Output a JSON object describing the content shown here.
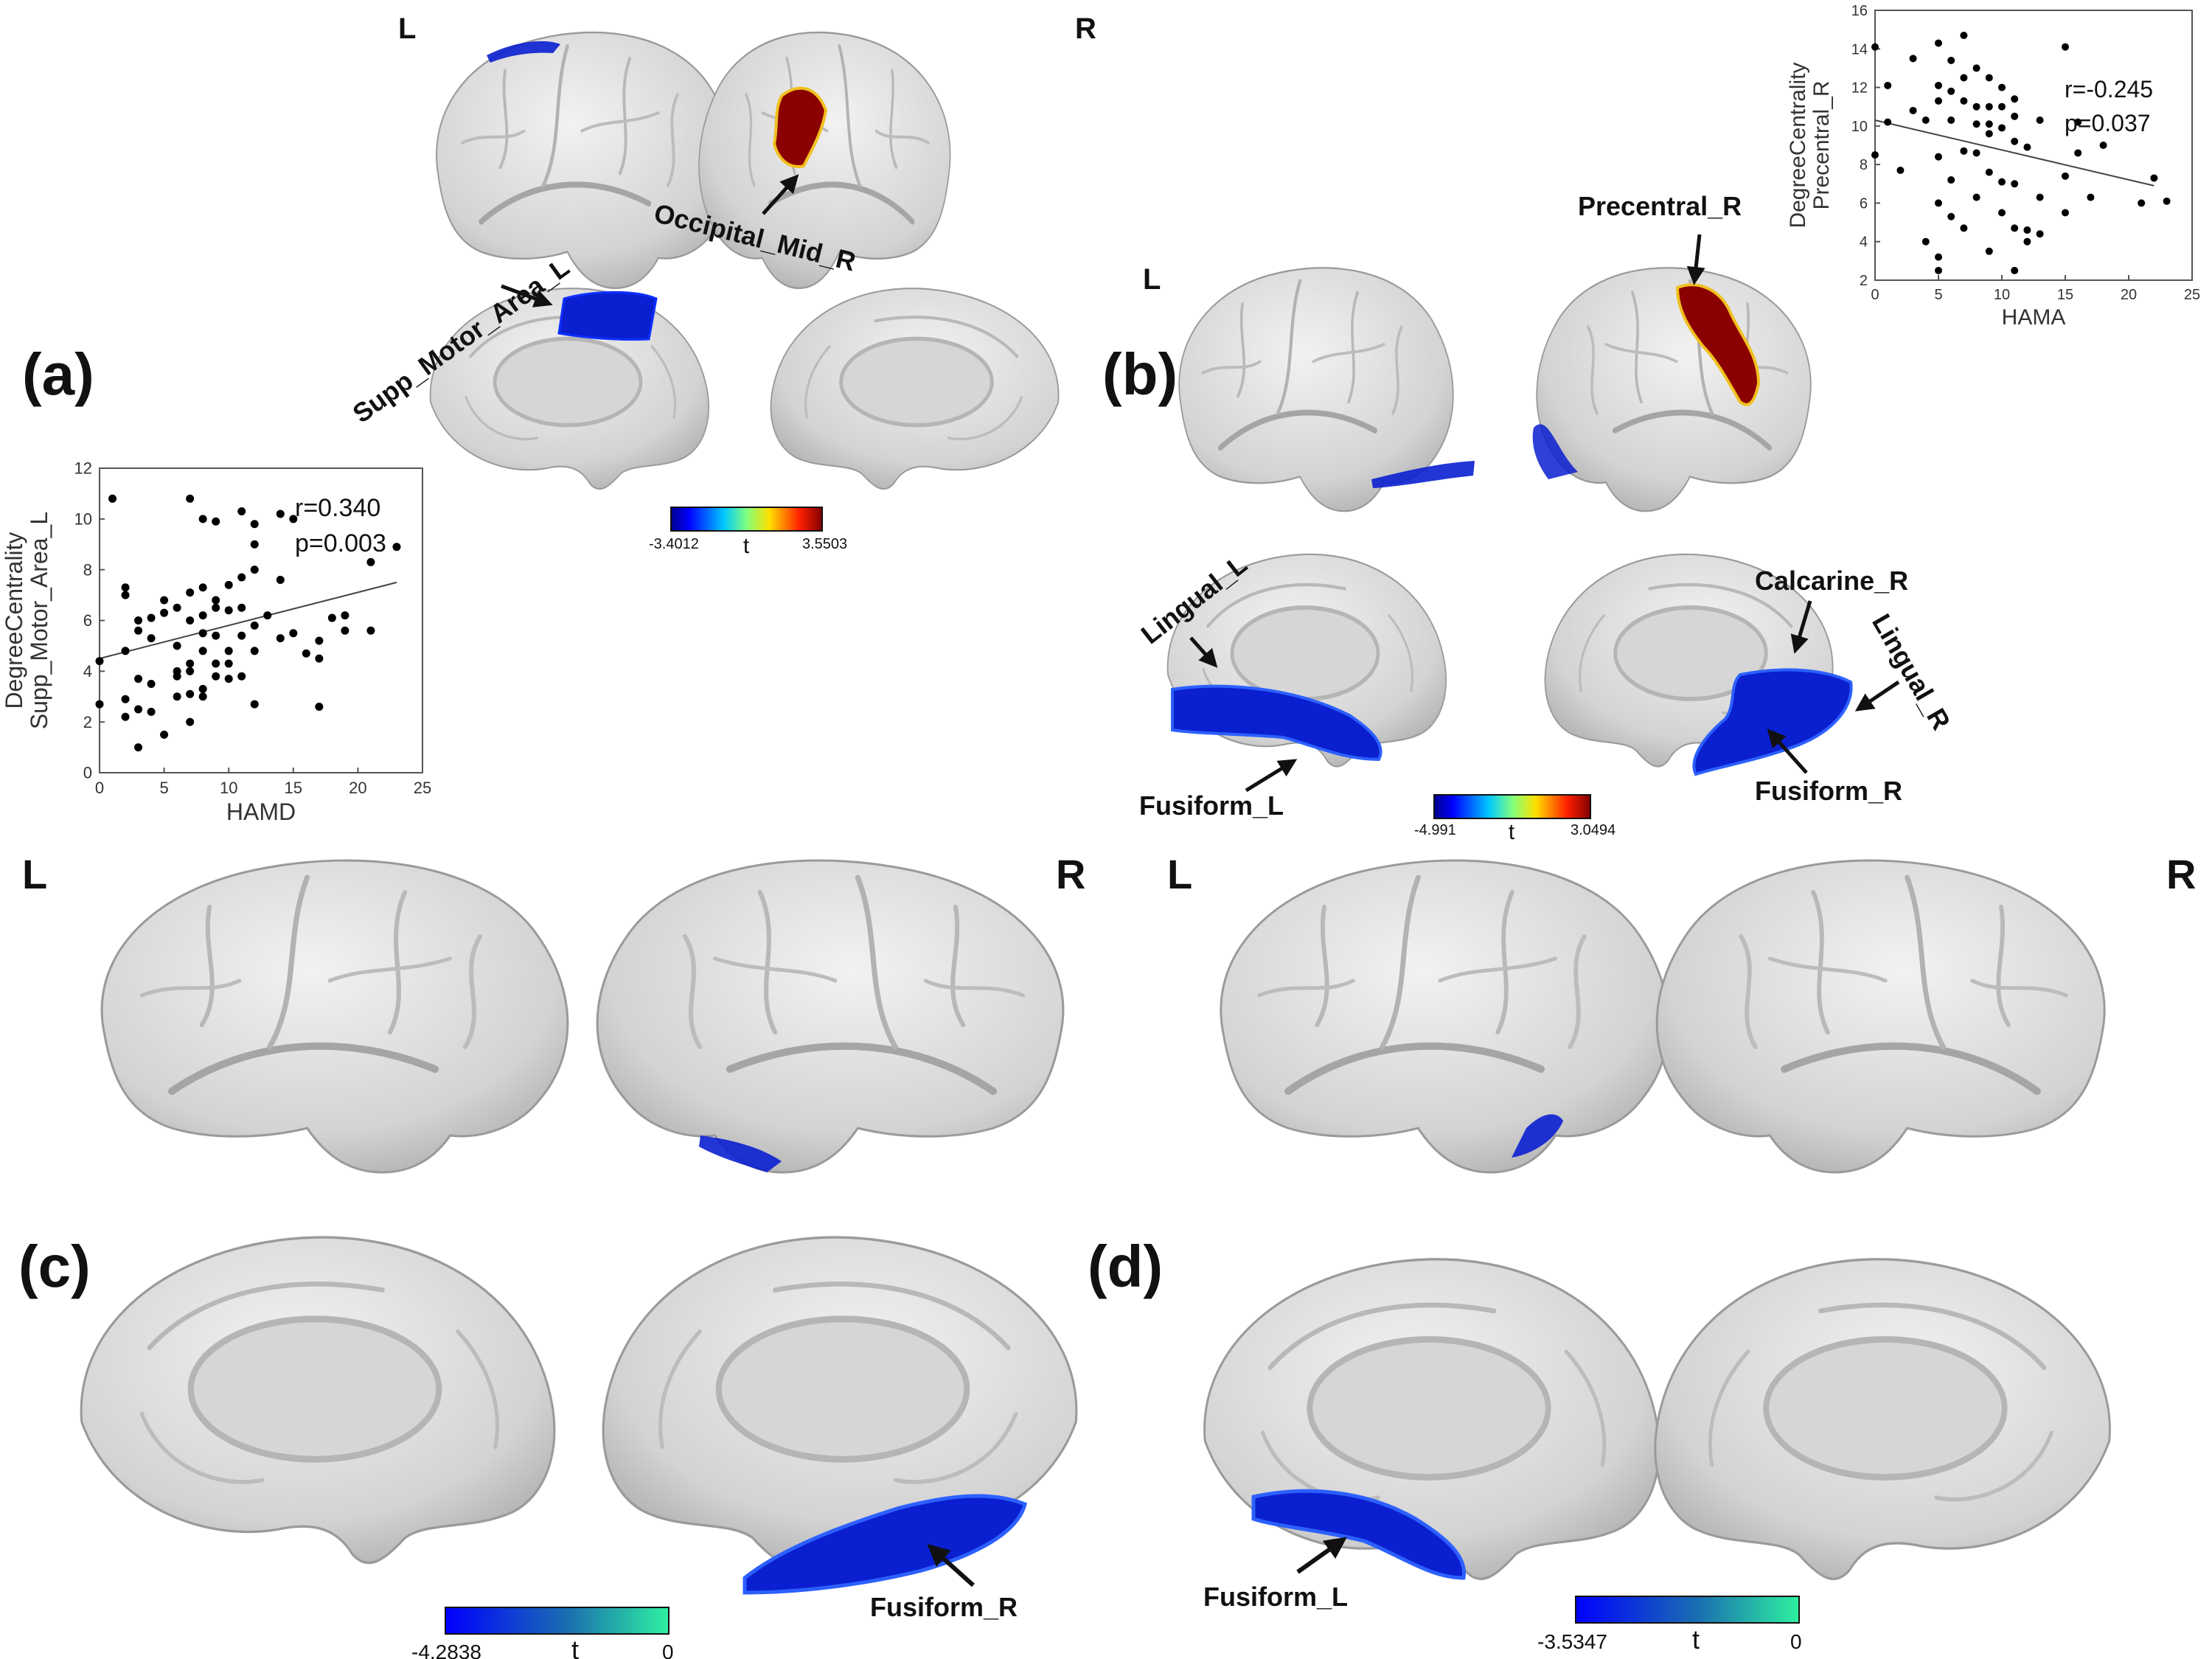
{
  "hemisphere_labels": {
    "left": "L",
    "right": "R"
  },
  "panels": {
    "a": {
      "tag": "(a)",
      "regions": [
        "Supp_Motor_Area_L",
        "Occipital_Mid_R"
      ],
      "colorbar": {
        "min_label": "-3.4012",
        "max_label": "3.5503",
        "var": "t"
      }
    },
    "b": {
      "tag": "(b)",
      "regions": [
        "Precentral_R",
        "Lingual_L",
        "Calcarine_R",
        "Lingual_R",
        "Fusiform_L",
        "Fusiform_R"
      ],
      "colorbar": {
        "min_label": "-4.991",
        "max_label": "3.0494",
        "var": "t"
      }
    },
    "c": {
      "tag": "(c)",
      "regions": [
        "Fusiform_R"
      ],
      "colorbar": {
        "min_label": "-4.2838",
        "max_label": "0",
        "var": "t"
      }
    },
    "d": {
      "tag": "(d)",
      "regions": [
        "Fusiform_L"
      ],
      "colorbar": {
        "min_label": "-3.5347",
        "max_label": "0",
        "var": "t"
      }
    }
  },
  "colors": {
    "negative": "#0a1fd0",
    "positive": "#8b0000",
    "cortex": "#d9d9d9"
  },
  "chart_data": [
    {
      "type": "scatter",
      "id": "hamd",
      "xlabel": "HAMD",
      "ylabel_line1": "DegreeCentrality",
      "ylabel_line2": "Supp_Motor_Area_L",
      "xlim": [
        0,
        25
      ],
      "ylim": [
        0,
        12
      ],
      "xticks": [
        0,
        5,
        10,
        15,
        20,
        25
      ],
      "yticks": [
        0,
        2,
        4,
        6,
        8,
        10,
        12
      ],
      "r_text": "r=0.340",
      "p_text": "p=0.003",
      "fit": {
        "x": [
          0,
          23
        ],
        "y": [
          4.5,
          7.5
        ]
      },
      "points": [
        [
          0,
          4.4
        ],
        [
          0,
          2.7
        ],
        [
          1,
          10.8
        ],
        [
          2,
          7.3
        ],
        [
          2,
          7.0
        ],
        [
          2,
          4.8
        ],
        [
          2,
          2.9
        ],
        [
          2,
          2.2
        ],
        [
          3,
          6.0
        ],
        [
          3,
          5.6
        ],
        [
          3,
          3.7
        ],
        [
          3,
          2.5
        ],
        [
          3,
          1.0
        ],
        [
          4,
          6.1
        ],
        [
          4,
          5.3
        ],
        [
          4,
          3.5
        ],
        [
          4,
          2.4
        ],
        [
          5,
          6.8
        ],
        [
          5,
          6.3
        ],
        [
          5,
          1.5
        ],
        [
          6,
          6.5
        ],
        [
          6,
          5.0
        ],
        [
          6,
          4.0
        ],
        [
          6,
          3.8
        ],
        [
          6,
          3.0
        ],
        [
          7,
          10.8
        ],
        [
          7,
          7.1
        ],
        [
          7,
          6.0
        ],
        [
          7,
          4.3
        ],
        [
          7,
          4.0
        ],
        [
          7,
          3.1
        ],
        [
          7,
          2.0
        ],
        [
          8,
          10.0
        ],
        [
          8,
          7.3
        ],
        [
          8,
          6.2
        ],
        [
          8,
          5.5
        ],
        [
          8,
          4.8
        ],
        [
          8,
          3.3
        ],
        [
          8,
          3.0
        ],
        [
          9,
          9.9
        ],
        [
          9,
          6.8
        ],
        [
          9,
          6.5
        ],
        [
          9,
          5.4
        ],
        [
          9,
          4.3
        ],
        [
          9,
          3.8
        ],
        [
          10,
          7.4
        ],
        [
          10,
          6.4
        ],
        [
          10,
          4.8
        ],
        [
          10,
          4.3
        ],
        [
          10,
          3.7
        ],
        [
          11,
          10.3
        ],
        [
          11,
          7.7
        ],
        [
          11,
          6.5
        ],
        [
          11,
          5.4
        ],
        [
          11,
          3.8
        ],
        [
          12,
          9.8
        ],
        [
          12,
          9.0
        ],
        [
          12,
          8.0
        ],
        [
          12,
          5.8
        ],
        [
          12,
          4.8
        ],
        [
          12,
          2.7
        ],
        [
          13,
          6.2
        ],
        [
          14,
          10.2
        ],
        [
          14,
          7.6
        ],
        [
          14,
          5.3
        ],
        [
          15,
          10.0
        ],
        [
          15,
          5.5
        ],
        [
          16,
          4.7
        ],
        [
          17,
          5.2
        ],
        [
          17,
          4.5
        ],
        [
          17,
          2.6
        ],
        [
          18,
          6.1
        ],
        [
          19,
          5.6
        ],
        [
          19,
          6.2
        ],
        [
          21,
          8.3
        ],
        [
          21,
          5.6
        ],
        [
          23,
          8.9
        ]
      ]
    },
    {
      "type": "scatter",
      "id": "hama",
      "xlabel": "HAMA",
      "ylabel_line1": "DegreeCentrality",
      "ylabel_line2": "Precentral_R",
      "xlim": [
        0,
        25
      ],
      "ylim": [
        2,
        16
      ],
      "xticks": [
        0,
        5,
        10,
        15,
        20,
        25
      ],
      "yticks": [
        2,
        4,
        6,
        8,
        10,
        12,
        14,
        16
      ],
      "r_text": "r=-0.245",
      "p_text": "p=0.037",
      "fit": {
        "x": [
          0,
          22
        ],
        "y": [
          10.3,
          6.9
        ]
      },
      "points": [
        [
          0,
          14.1
        ],
        [
          0,
          8.5
        ],
        [
          1,
          10.2
        ],
        [
          1,
          12.1
        ],
        [
          2,
          7.7
        ],
        [
          3,
          13.5
        ],
        [
          3,
          10.8
        ],
        [
          4,
          4.0
        ],
        [
          4,
          10.3
        ],
        [
          5,
          14.3
        ],
        [
          5,
          12.1
        ],
        [
          5,
          11.3
        ],
        [
          5,
          8.4
        ],
        [
          5,
          6.0
        ],
        [
          5,
          3.2
        ],
        [
          5,
          2.5
        ],
        [
          6,
          13.4
        ],
        [
          6,
          11.8
        ],
        [
          6,
          10.3
        ],
        [
          6,
          7.2
        ],
        [
          6,
          5.3
        ],
        [
          7,
          14.7
        ],
        [
          7,
          12.5
        ],
        [
          7,
          11.3
        ],
        [
          7,
          8.7
        ],
        [
          7,
          4.7
        ],
        [
          8,
          13.0
        ],
        [
          8,
          11.0
        ],
        [
          8,
          10.1
        ],
        [
          8,
          8.6
        ],
        [
          8,
          6.3
        ],
        [
          9,
          12.5
        ],
        [
          9,
          11.0
        ],
        [
          9,
          10.1
        ],
        [
          9,
          9.6
        ],
        [
          9,
          7.6
        ],
        [
          9,
          3.5
        ],
        [
          10,
          12.0
        ],
        [
          10,
          11.0
        ],
        [
          10,
          9.9
        ],
        [
          10,
          7.1
        ],
        [
          10,
          5.5
        ],
        [
          11,
          11.4
        ],
        [
          11,
          10.5
        ],
        [
          11,
          9.2
        ],
        [
          11,
          7.0
        ],
        [
          11,
          4.7
        ],
        [
          11,
          2.5
        ],
        [
          12,
          8.9
        ],
        [
          12,
          4.6
        ],
        [
          12,
          4.0
        ],
        [
          13,
          10.3
        ],
        [
          13,
          6.3
        ],
        [
          13,
          4.4
        ],
        [
          15,
          14.1
        ],
        [
          15,
          7.4
        ],
        [
          15,
          5.5
        ],
        [
          16,
          10.2
        ],
        [
          16,
          8.6
        ],
        [
          17,
          6.3
        ],
        [
          18,
          9.0
        ],
        [
          21,
          6.0
        ],
        [
          22,
          7.3
        ],
        [
          23,
          6.1
        ]
      ]
    }
  ]
}
